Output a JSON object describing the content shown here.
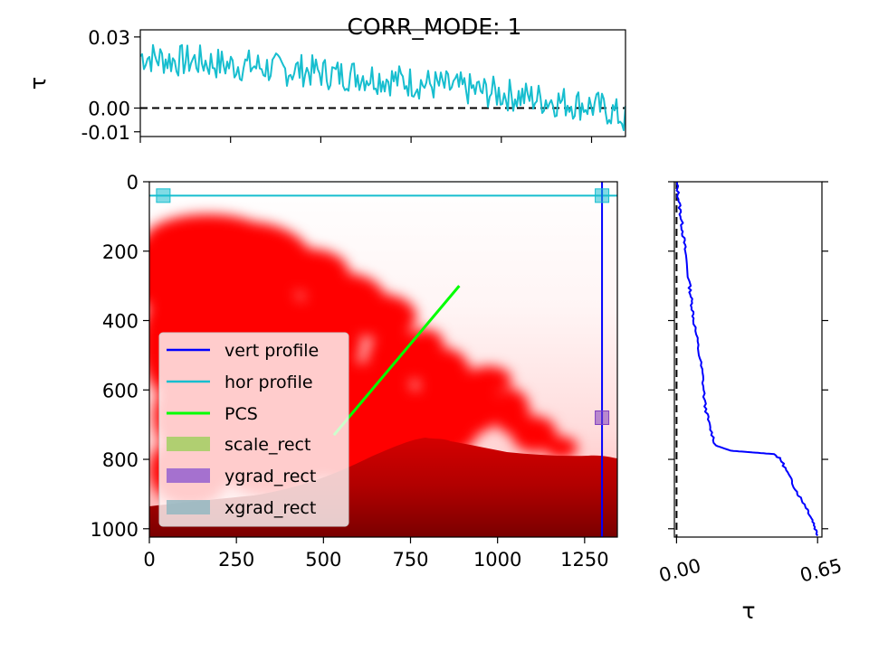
{
  "figure": {
    "title": "CORR_MODE: 1",
    "background": "#ffffff"
  },
  "chart_data": [
    {
      "id": "top-profile",
      "type": "line",
      "title": "",
      "xlabel": "",
      "ylabel": "τ",
      "xlim": [
        0,
        1344
      ],
      "ylim": [
        -0.012,
        0.033
      ],
      "x_ticks": [
        0,
        250,
        500,
        750,
        1000,
        1250
      ],
      "y_ticks": [
        {
          "value": 0.03,
          "label": "0.03"
        },
        {
          "value": 0.0,
          "label": "0.00"
        },
        {
          "value": -0.01,
          "label": "-0.01"
        }
      ],
      "reference_line": {
        "y": 0.0,
        "style": "dashed",
        "color": "#000000"
      },
      "series": [
        {
          "color": "#17becf",
          "x": [
            0,
            50,
            100,
            150,
            200,
            250,
            300,
            350,
            400,
            450,
            500,
            550,
            600,
            650,
            700,
            750,
            800,
            850,
            900,
            950,
            1000,
            1050,
            1100,
            1150,
            1200,
            1250,
            1300,
            1344
          ],
          "y": [
            0.022,
            0.021,
            0.02,
            0.02,
            0.019,
            0.018,
            0.018,
            0.017,
            0.016,
            0.016,
            0.015,
            0.014,
            0.014,
            0.013,
            0.012,
            0.011,
            0.01,
            0.009,
            0.008,
            0.007,
            0.006,
            0.005,
            0.004,
            0.003,
            0.002,
            0.001,
            -0.001,
            -0.005
          ],
          "noise_amplitude": 0.007
        }
      ]
    },
    {
      "id": "image-panel",
      "type": "heatmap",
      "title": "",
      "xlabel": "",
      "ylabel": "",
      "xlim": [
        0,
        1344
      ],
      "ylim": [
        1024,
        0
      ],
      "x_ticks": [
        0,
        250,
        500,
        750,
        1000,
        1250
      ],
      "y_ticks": [
        0,
        200,
        400,
        600,
        800,
        1000
      ],
      "colormap": "Reds",
      "overlays": [
        {
          "name": "vert profile",
          "kind": "vline",
          "x": 1300,
          "color": "#0000ff"
        },
        {
          "name": "hor profile",
          "kind": "hline",
          "y": 40,
          "color": "#17becf"
        },
        {
          "name": "PCS",
          "kind": "segment",
          "x": [
            530,
            890
          ],
          "y": [
            730,
            300
          ],
          "color": "#00ff00"
        }
      ],
      "markers": [
        {
          "name": "xgrad_rect",
          "x": 40,
          "y": 40,
          "color": "#17becf"
        },
        {
          "name": "xgrad_rect",
          "x": 1300,
          "y": 40,
          "color": "#17becf"
        },
        {
          "name": "ygrad_rect",
          "x": 1300,
          "y": 680,
          "color": "#7f3fbf"
        }
      ],
      "legend": {
        "placement": "lower-left",
        "entries": [
          {
            "label": "vert profile",
            "kind": "line",
            "color": "#0000ff"
          },
          {
            "label": "hor profile",
            "kind": "line",
            "color": "#17becf"
          },
          {
            "label": "PCS",
            "kind": "line",
            "color": "#00ff00"
          },
          {
            "label": "scale_rect",
            "kind": "patch",
            "color": "#9ccf5a"
          },
          {
            "label": "ygrad_rect",
            "kind": "patch",
            "color": "#8f5ad0"
          },
          {
            "label": "xgrad_rect",
            "kind": "patch",
            "color": "#8fb6c0"
          }
        ]
      }
    },
    {
      "id": "right-profile",
      "type": "line",
      "title": "",
      "xlabel": "τ",
      "ylabel": "",
      "xlim": [
        -0.01,
        0.67
      ],
      "ylim": [
        1024,
        0
      ],
      "x_ticks": [
        {
          "value": 0.0,
          "label": "0.00"
        },
        {
          "value": 0.65,
          "label": "0.65"
        }
      ],
      "y_ticks": [
        0,
        200,
        400,
        600,
        800,
        1000
      ],
      "reference_line": {
        "x": 0.0,
        "style": "dashed",
        "color": "#000000"
      },
      "series": [
        {
          "color": "#0000ff",
          "x": [
            0.0,
            0.01,
            0.02,
            0.03,
            0.04,
            0.06,
            0.07,
            0.08,
            0.1,
            0.12,
            0.13,
            0.15,
            0.18,
            0.25,
            0.35,
            0.45,
            0.48,
            0.52,
            0.56,
            0.6,
            0.63,
            0.65
          ],
          "y": [
            0,
            50,
            100,
            150,
            200,
            300,
            350,
            400,
            480,
            560,
            640,
            700,
            760,
            775,
            780,
            785,
            800,
            850,
            900,
            940,
            980,
            1020
          ]
        }
      ]
    }
  ]
}
